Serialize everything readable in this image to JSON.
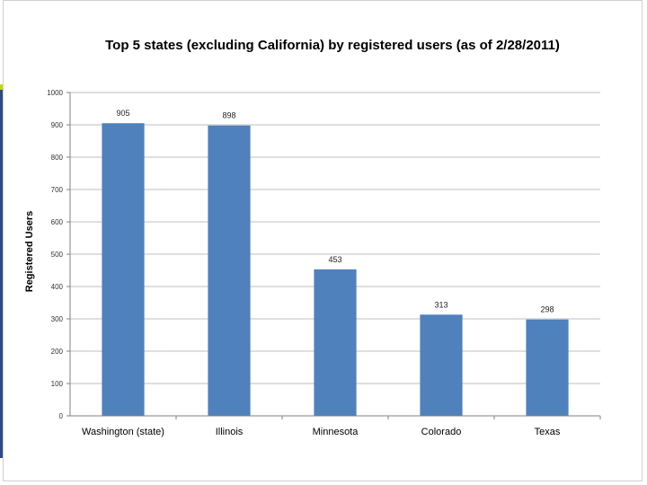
{
  "chart_data": {
    "type": "bar",
    "title": "Top 5 states (excluding California) by registered users (as of 2/28/2011)",
    "xlabel": "",
    "ylabel": "Registered Users",
    "categories": [
      "Washington (state)",
      "Illinois",
      "Minnesota",
      "Colorado",
      "Texas"
    ],
    "values": [
      905,
      898,
      453,
      313,
      298
    ],
    "data_labels": [
      "905",
      "898",
      "453",
      "313",
      "298"
    ],
    "ylim": [
      0,
      1000
    ],
    "y_ticks": [
      0,
      100,
      200,
      300,
      400,
      500,
      600,
      700,
      800,
      900,
      1000
    ],
    "y_tick_labels": [
      "0",
      "100",
      "200",
      "300",
      "400",
      "500",
      "600",
      "700",
      "800",
      "900",
      "1000"
    ],
    "grid": true,
    "legend": "none",
    "bar_color": "#4f81bd"
  }
}
